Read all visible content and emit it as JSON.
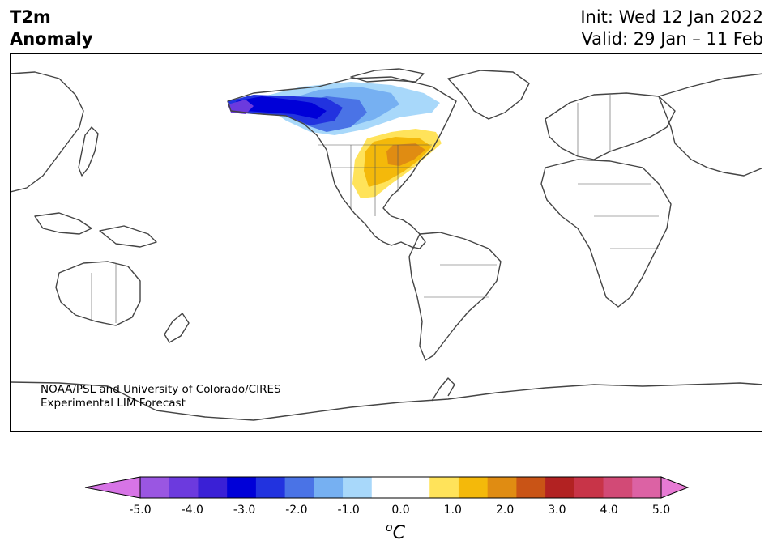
{
  "header": {
    "title_line1": "T2m",
    "title_line2": "Anomaly",
    "init_text": "Init: Wed 12 Jan 2022",
    "valid_text": "Valid: 29 Jan – 11 Feb"
  },
  "credit": {
    "line1": "NOAA/PSL and University of Colorado/CIRES",
    "line2": "Experimental LIM Forecast"
  },
  "colorbar": {
    "ticks": [
      "-5.0",
      "-4.0",
      "-3.0",
      "-2.0",
      "-1.0",
      "0.0",
      "1.0",
      "2.0",
      "3.0",
      "4.0",
      "5.0"
    ],
    "unit_sup": "o",
    "unit_base": "C",
    "colors": [
      "#d774e6",
      "#9a56e2",
      "#6c3ade",
      "#3a20d6",
      "#0000d8",
      "#2233df",
      "#4a73e6",
      "#76b0f2",
      "#a8d8fa",
      "#ffffff",
      "#ffffff",
      "#ffe35a",
      "#f4b90a",
      "#e08c12",
      "#c95416",
      "#b22222",
      "#c83448",
      "#d24a76",
      "#dc62a4",
      "#e77ad4"
    ]
  },
  "map": {
    "projection": "equirectangular, centered at 90W",
    "anomaly_regions": [
      {
        "name": "alaska-western-canada",
        "level": "-3.0 to -4.0",
        "color": "#1a1ad8"
      },
      {
        "name": "central-canada",
        "level": "-1.0 to -2.0",
        "color": "#76b0f2"
      },
      {
        "name": "eastern-united-states",
        "level": "1.0 to 2.0",
        "color": "#f4b90a"
      }
    ]
  }
}
